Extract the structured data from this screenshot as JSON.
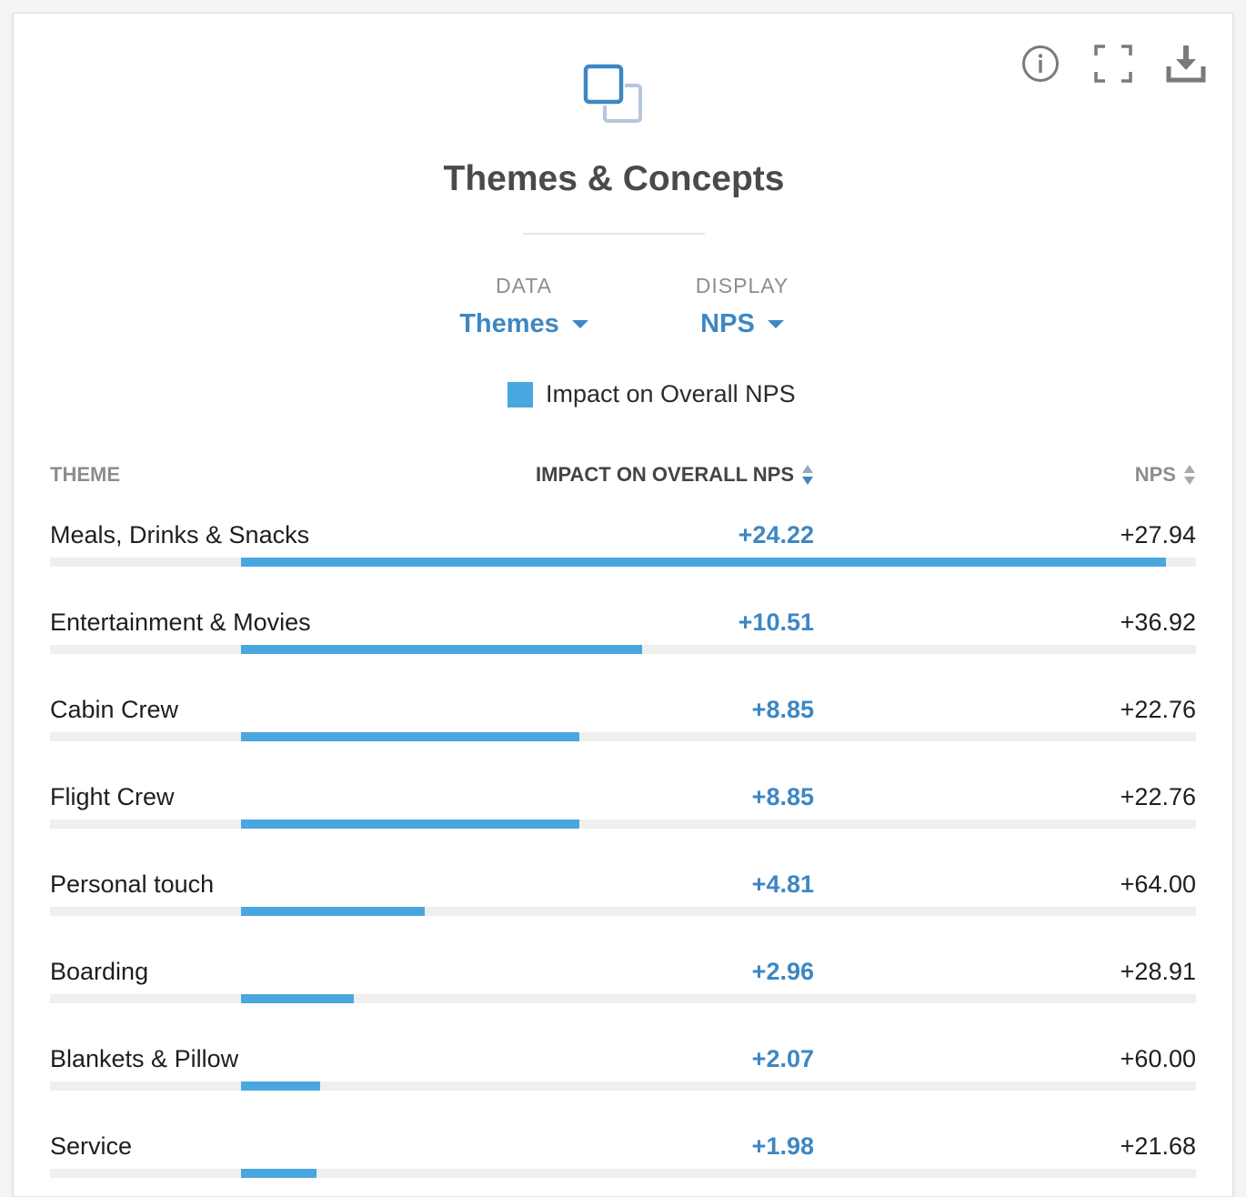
{
  "header": {
    "title": "Themes & Concepts",
    "icons": [
      "info-icon",
      "fullscreen-icon",
      "download-icon",
      "widget-icon"
    ]
  },
  "selectors": {
    "data_label": "DATA",
    "data_value": "Themes",
    "display_label": "DISPLAY",
    "display_value": "NPS"
  },
  "legend": {
    "label": "Impact on Overall NPS",
    "color": "#4aa6de"
  },
  "table": {
    "columns": {
      "theme": "THEME",
      "impact": "IMPACT ON OVERALL NPS",
      "nps": "NPS"
    },
    "rows": [
      {
        "theme": "Meals, Drinks & Snacks",
        "impact": "+24.22",
        "nps": "+27.94"
      },
      {
        "theme": "Entertainment & Movies",
        "impact": "+10.51",
        "nps": "+36.92"
      },
      {
        "theme": "Cabin Crew",
        "impact": "+8.85",
        "nps": "+22.76"
      },
      {
        "theme": "Flight Crew",
        "impact": "+8.85",
        "nps": "+22.76"
      },
      {
        "theme": "Personal touch",
        "impact": "+4.81",
        "nps": "+64.00"
      },
      {
        "theme": "Boarding",
        "impact": "+2.96",
        "nps": "+28.91"
      },
      {
        "theme": "Blankets & Pillow",
        "impact": "+2.07",
        "nps": "+60.00"
      },
      {
        "theme": "Service",
        "impact": "+1.98",
        "nps": "+21.68"
      }
    ]
  },
  "chart_data": {
    "type": "bar",
    "title": "Themes & Concepts",
    "series": [
      {
        "name": "Impact on Overall NPS",
        "values": [
          24.22,
          10.51,
          8.85,
          8.85,
          4.81,
          2.96,
          2.07,
          1.98
        ]
      }
    ],
    "categories": [
      "Meals, Drinks & Snacks",
      "Entertainment & Movies",
      "Cabin Crew",
      "Flight Crew",
      "Personal touch",
      "Boarding",
      "Blankets & Pillow",
      "Service"
    ],
    "nps": [
      27.94,
      36.92,
      22.76,
      22.76,
      64.0,
      28.91,
      60.0,
      21.68
    ],
    "xlim": [
      0,
      24.22
    ],
    "legend": "top-center"
  },
  "colors": {
    "accent": "#3d87c4",
    "bar": "#4aa6de",
    "track": "#efefef"
  }
}
